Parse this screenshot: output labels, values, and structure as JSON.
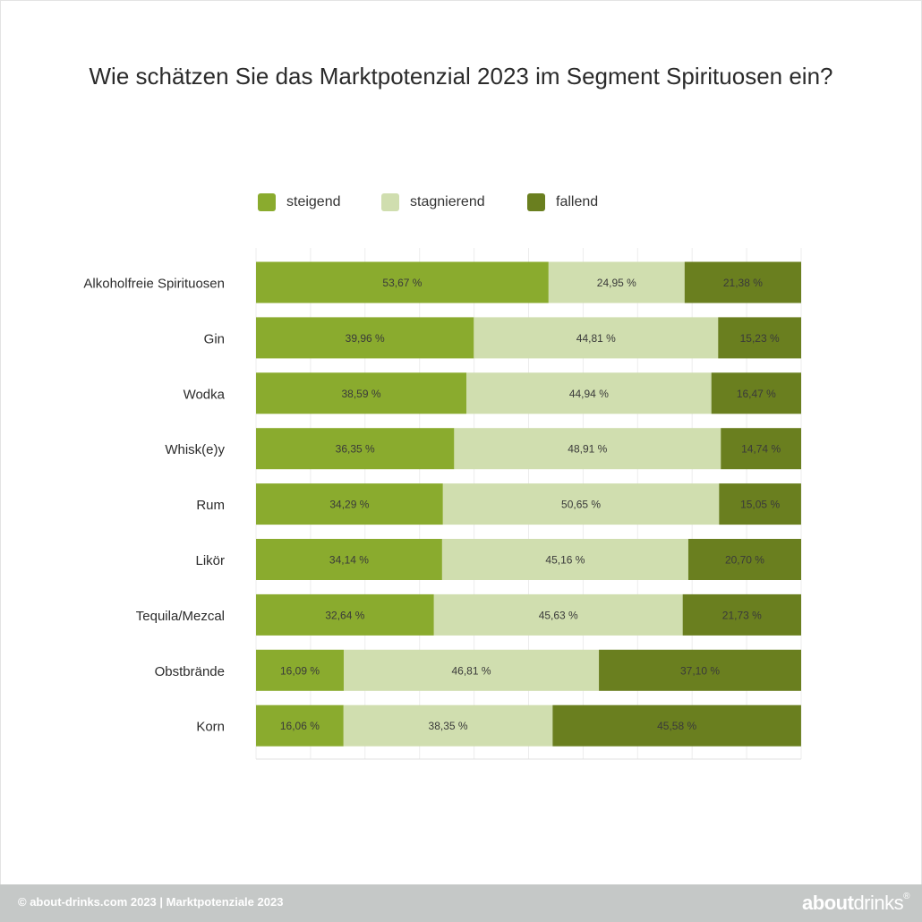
{
  "chart_data": {
    "type": "bar",
    "orientation": "horizontal",
    "stacked": true,
    "title": "Wie schätzen Sie das Marktpotenzial 2023 im Segment Spirituosen ein?",
    "categories": [
      "Alkoholfreie Spirituosen",
      "Gin",
      "Wodka",
      "Whisk(e)y",
      "Rum",
      "Likör",
      "Tequila/Mezcal",
      "Obstbrände",
      "Korn"
    ],
    "series": [
      {
        "name": "steigend",
        "color": "#8aab2e",
        "values": [
          53.67,
          39.96,
          38.59,
          36.35,
          34.29,
          34.14,
          32.64,
          16.09,
          16.06
        ],
        "labels": [
          "53,67 %",
          "39,96 %",
          "38,59 %",
          "36,35 %",
          "34,29 %",
          "34,14 %",
          "32,64 %",
          "16,09 %",
          "16,06 %"
        ]
      },
      {
        "name": "stagnierend",
        "color": "#d0deaf",
        "values": [
          24.95,
          44.81,
          44.94,
          48.91,
          50.65,
          45.16,
          45.63,
          46.81,
          38.35
        ],
        "labels": [
          "24,95 %",
          "44,81 %",
          "44,94 %",
          "48,91 %",
          "50,65 %",
          "45,16 %",
          "45,63 %",
          "46,81 %",
          "38,35 %"
        ]
      },
      {
        "name": "fallend",
        "color": "#6a7f1f",
        "values": [
          21.38,
          15.23,
          16.47,
          14.74,
          15.05,
          20.7,
          21.73,
          37.1,
          45.58
        ],
        "labels": [
          "21,38 %",
          "15,23 %",
          "16,47 %",
          "14,74 %",
          "15,05 %",
          "20,70 %",
          "21,73 %",
          "37,10 %",
          "45,58 %"
        ]
      }
    ],
    "xlim": [
      0,
      100
    ],
    "grid": true,
    "legend": "top"
  },
  "footer": {
    "text": "© about-drinks.com 2023  |  Marktpotenziale 2023",
    "logo_bold": "about",
    "logo_light": "drinks",
    "logo_mark": "®"
  }
}
